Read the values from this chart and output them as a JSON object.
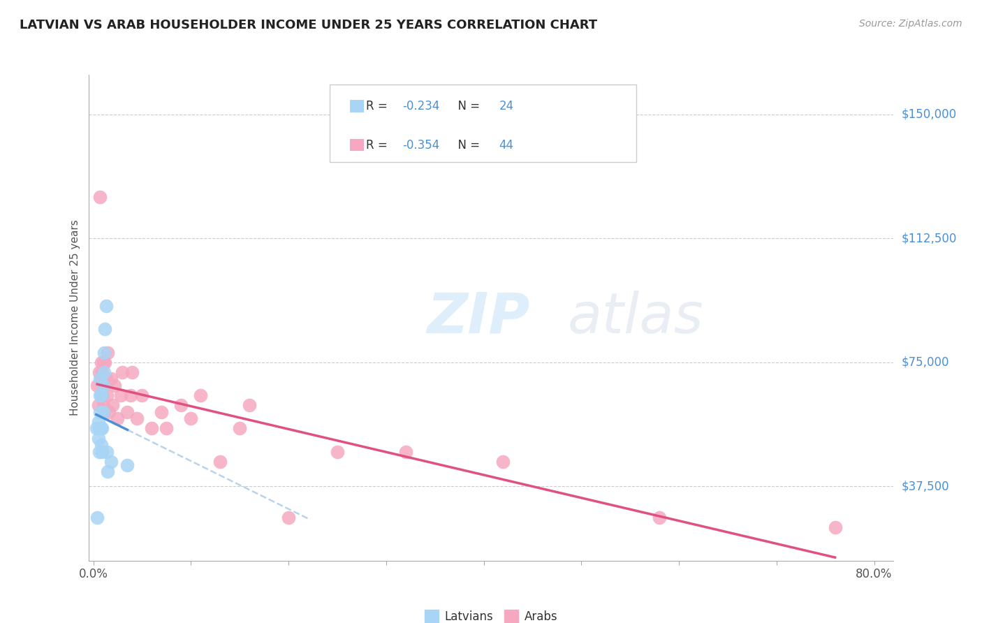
{
  "title": "LATVIAN VS ARAB HOUSEHOLDER INCOME UNDER 25 YEARS CORRELATION CHART",
  "source": "Source: ZipAtlas.com",
  "ylabel": "Householder Income Under 25 years",
  "ytick_labels": [
    "$37,500",
    "$75,000",
    "$112,500",
    "$150,000"
  ],
  "ytick_values": [
    37500,
    75000,
    112500,
    150000
  ],
  "xlim": [
    -0.005,
    0.82
  ],
  "ylim": [
    15000,
    162000
  ],
  "latvian_R": -0.234,
  "latvian_N": 24,
  "arab_R": -0.354,
  "arab_N": 44,
  "latvian_color": "#a8d4f5",
  "arab_color": "#f5a8c0",
  "latvian_line_color": "#4a90d9",
  "arab_line_color": "#e05080",
  "latvian_dash_color": "#a8c8e8",
  "watermark_zip": "ZIP",
  "watermark_atlas": "atlas",
  "latvians_x": [
    0.003,
    0.004,
    0.005,
    0.005,
    0.006,
    0.006,
    0.007,
    0.007,
    0.007,
    0.008,
    0.008,
    0.008,
    0.009,
    0.009,
    0.01,
    0.01,
    0.011,
    0.011,
    0.012,
    0.013,
    0.014,
    0.015,
    0.018,
    0.035
  ],
  "latvians_y": [
    55000,
    28000,
    52000,
    57000,
    48000,
    55000,
    60000,
    65000,
    70000,
    50000,
    55000,
    65000,
    48000,
    55000,
    60000,
    68000,
    72000,
    78000,
    85000,
    92000,
    48000,
    42000,
    45000,
    44000
  ],
  "arabs_x": [
    0.004,
    0.005,
    0.006,
    0.007,
    0.008,
    0.008,
    0.009,
    0.009,
    0.01,
    0.01,
    0.01,
    0.011,
    0.011,
    0.012,
    0.013,
    0.014,
    0.015,
    0.016,
    0.018,
    0.02,
    0.022,
    0.025,
    0.028,
    0.03,
    0.035,
    0.038,
    0.04,
    0.045,
    0.05,
    0.06,
    0.07,
    0.075,
    0.09,
    0.1,
    0.11,
    0.13,
    0.15,
    0.16,
    0.2,
    0.25,
    0.32,
    0.42,
    0.58,
    0.76
  ],
  "arabs_y": [
    68000,
    62000,
    72000,
    125000,
    70000,
    75000,
    65000,
    72000,
    62000,
    68000,
    75000,
    60000,
    68000,
    75000,
    70000,
    65000,
    78000,
    60000,
    70000,
    62000,
    68000,
    58000,
    65000,
    72000,
    60000,
    65000,
    72000,
    58000,
    65000,
    55000,
    60000,
    55000,
    62000,
    58000,
    65000,
    45000,
    55000,
    62000,
    28000,
    48000,
    48000,
    45000,
    28000,
    25000
  ]
}
